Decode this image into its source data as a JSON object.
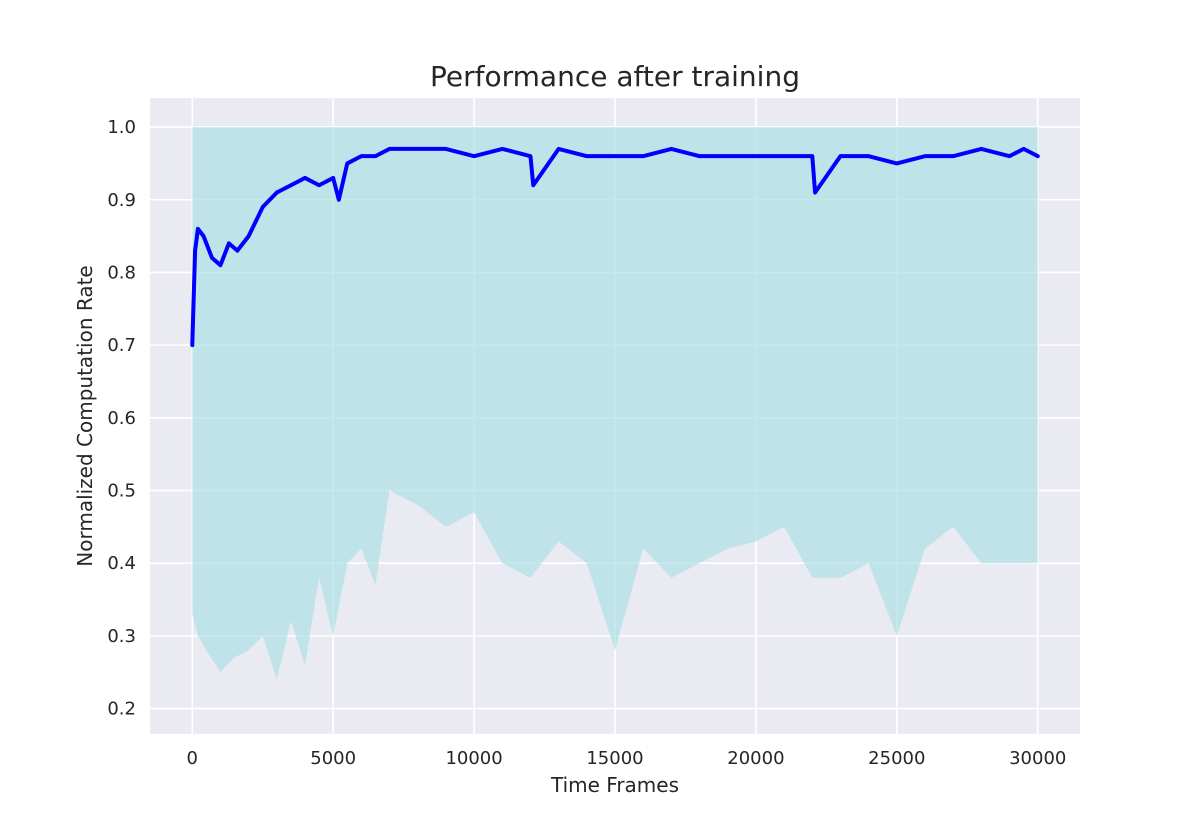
{
  "chart_data": {
    "type": "line",
    "title": "Performance after training",
    "xlabel": "Time Frames",
    "ylabel": "Normalized Computation Rate",
    "xlim": [
      -1500,
      31500
    ],
    "ylim": [
      0.165,
      1.04
    ],
    "xticks": [
      0,
      5000,
      10000,
      15000,
      20000,
      25000,
      30000
    ],
    "yticks": [
      0.2,
      0.3,
      0.4,
      0.5,
      0.6,
      0.7,
      0.8,
      0.9,
      1.0
    ],
    "xtick_labels": [
      "0",
      "5000",
      "10000",
      "15000",
      "20000",
      "25000",
      "30000"
    ],
    "ytick_labels": [
      "0.2",
      "0.3",
      "0.4",
      "0.5",
      "0.6",
      "0.7",
      "0.8",
      "0.9",
      "1.0"
    ],
    "grid": true,
    "style": "seaborn-darkgrid",
    "colors": {
      "background": "#EAEAF2",
      "grid": "#FFFFFF",
      "mean_line": "#0000FF",
      "fill": "#B0E0E6"
    },
    "series": [
      {
        "kind": "line",
        "x": [
          0,
          100,
          200,
          400,
          700,
          1000,
          1300,
          1600,
          2000,
          2500,
          3000,
          3500,
          4000,
          4500,
          5000,
          5200,
          5500,
          6000,
          6500,
          7000,
          8000,
          9000,
          10000,
          11000,
          12000,
          12100,
          13000,
          14000,
          15000,
          16000,
          17000,
          18000,
          19000,
          20000,
          21000,
          22000,
          22100,
          23000,
          24000,
          25000,
          26000,
          27000,
          28000,
          29000,
          29500,
          30000
        ],
        "y": [
          0.7,
          0.83,
          0.86,
          0.85,
          0.82,
          0.81,
          0.84,
          0.83,
          0.85,
          0.89,
          0.91,
          0.92,
          0.93,
          0.92,
          0.93,
          0.9,
          0.95,
          0.96,
          0.96,
          0.97,
          0.97,
          0.97,
          0.96,
          0.97,
          0.96,
          0.92,
          0.97,
          0.96,
          0.96,
          0.96,
          0.97,
          0.96,
          0.96,
          0.96,
          0.96,
          0.96,
          0.91,
          0.96,
          0.96,
          0.95,
          0.96,
          0.96,
          0.97,
          0.96,
          0.97,
          0.96
        ]
      },
      {
        "kind": "band",
        "x": [
          0,
          200,
          500,
          1000,
          1500,
          2000,
          2500,
          3000,
          3500,
          4000,
          4500,
          5000,
          5500,
          6000,
          6500,
          7000,
          8000,
          9000,
          10000,
          11000,
          12000,
          13000,
          14000,
          15000,
          16000,
          17000,
          18000,
          19000,
          20000,
          21000,
          22000,
          23000,
          24000,
          25000,
          26000,
          27000,
          28000,
          29000,
          30000
        ],
        "upper": [
          1.0,
          1.0,
          1.0,
          1.0,
          1.0,
          1.0,
          1.0,
          1.0,
          1.0,
          1.0,
          1.0,
          1.0,
          1.0,
          1.0,
          1.0,
          1.0,
          1.0,
          1.0,
          1.0,
          1.0,
          1.0,
          1.0,
          1.0,
          1.0,
          1.0,
          1.0,
          1.0,
          1.0,
          1.0,
          1.0,
          1.0,
          1.0,
          1.0,
          1.0,
          1.0,
          1.0,
          1.0,
          1.0,
          1.0
        ],
        "lower": [
          0.33,
          0.3,
          0.28,
          0.25,
          0.27,
          0.28,
          0.3,
          0.24,
          0.32,
          0.26,
          0.38,
          0.3,
          0.4,
          0.42,
          0.37,
          0.5,
          0.48,
          0.45,
          0.47,
          0.4,
          0.38,
          0.43,
          0.4,
          0.28,
          0.42,
          0.38,
          0.4,
          0.42,
          0.43,
          0.45,
          0.38,
          0.38,
          0.4,
          0.3,
          0.42,
          0.45,
          0.4,
          0.4,
          0.4
        ]
      }
    ]
  }
}
